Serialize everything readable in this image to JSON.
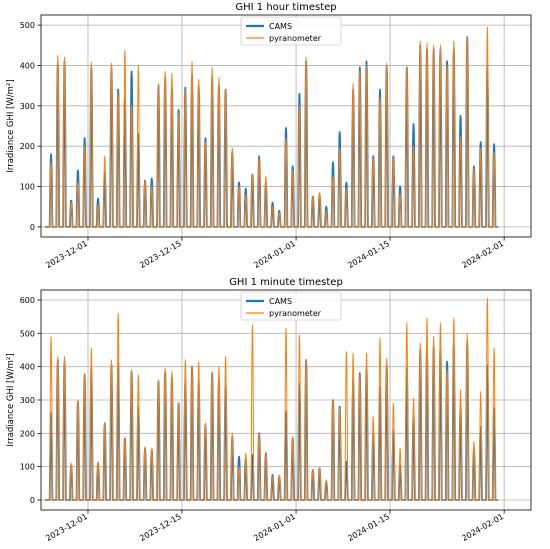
{
  "chart_data": [
    {
      "type": "line",
      "title": "GHI 1 hour timestep",
      "ylabel": "Irradiance GHI [W/m²]",
      "xlabel": "",
      "ylim": [
        -25,
        525
      ],
      "xlim": [
        "2023-11-24",
        "2024-02-05"
      ],
      "yticks": [
        0,
        100,
        200,
        300,
        400,
        500
      ],
      "xticks": [
        "2023-12-01",
        "2023-12-15",
        "2024-01-01",
        "2024-01-15",
        "2024-02-01"
      ],
      "grid": true,
      "legend_position": "top-center",
      "start_date": "2023-11-25",
      "series": [
        {
          "name": "CAMS",
          "color": "#1f77b4",
          "values": [
            180,
            405,
            410,
            65,
            140,
            220,
            395,
            70,
            135,
            395,
            340,
            320,
            385,
            230,
            115,
            120,
            350,
            370,
            345,
            290,
            345,
            375,
            350,
            220,
            370,
            350,
            340,
            185,
            110,
            95,
            130,
            175,
            110,
            60,
            40,
            245,
            150,
            330,
            410,
            75,
            80,
            50,
            160,
            235,
            110,
            340,
            395,
            410,
            175,
            340,
            400,
            175,
            100,
            395,
            255,
            450,
            440,
            440,
            440,
            410,
            440,
            275,
            470,
            150,
            210,
            400,
            205
          ]
        },
        {
          "name": "pyranometer",
          "color": "#ff7f0e",
          "values": [
            160,
            425,
            420,
            60,
            110,
            200,
            408,
            55,
            175,
            405,
            330,
            437,
            300,
            400,
            115,
            100,
            355,
            385,
            380,
            280,
            340,
            410,
            365,
            210,
            395,
            370,
            340,
            195,
            100,
            80,
            130,
            170,
            125,
            50,
            35,
            220,
            140,
            300,
            420,
            75,
            85,
            40,
            125,
            195,
            95,
            355,
            385,
            400,
            170,
            320,
            405,
            170,
            80,
            395,
            200,
            460,
            455,
            450,
            450,
            400,
            460,
            225,
            470,
            145,
            195,
            495,
            185
          ]
        }
      ]
    },
    {
      "type": "line",
      "title": "GHI 1 minute timestep",
      "ylabel": "Irradiance GHI [W/m²]",
      "xlabel": "",
      "ylim": [
        -30,
        630
      ],
      "xlim": [
        "2023-11-24",
        "2024-02-05"
      ],
      "yticks": [
        0,
        100,
        200,
        300,
        400,
        500,
        600
      ],
      "xticks": [
        "2023-12-01",
        "2023-12-15",
        "2024-01-01",
        "2024-01-15",
        "2024-02-01"
      ],
      "grid": true,
      "legend_position": "top-center",
      "start_date": "2023-11-25",
      "series": [
        {
          "name": "CAMS",
          "color": "#1f77b4",
          "values": [
            260,
            420,
            415,
            105,
            295,
            375,
            395,
            110,
            230,
            405,
            410,
            185,
            385,
            280,
            155,
            150,
            355,
            385,
            365,
            290,
            355,
            400,
            355,
            225,
            380,
            360,
            350,
            190,
            130,
            125,
            135,
            200,
            140,
            75,
            70,
            265,
            185,
            350,
            420,
            90,
            95,
            55,
            300,
            280,
            115,
            360,
            380,
            400,
            200,
            340,
            405,
            210,
            105,
            395,
            255,
            450,
            450,
            460,
            455,
            415,
            470,
            280,
            475,
            155,
            220,
            405,
            275
          ]
        },
        {
          "name": "pyranometer",
          "color": "#ff7f0e",
          "values": [
            490,
            430,
            430,
            110,
            300,
            380,
            455,
            115,
            230,
            420,
            560,
            185,
            390,
            375,
            160,
            155,
            360,
            395,
            385,
            290,
            420,
            400,
            415,
            230,
            385,
            400,
            430,
            200,
            100,
            140,
            525,
            200,
            140,
            70,
            75,
            515,
            190,
            495,
            420,
            90,
            95,
            60,
            300,
            275,
            445,
            440,
            375,
            440,
            250,
            485,
            425,
            290,
            155,
            530,
            305,
            470,
            545,
            490,
            530,
            390,
            545,
            330,
            500,
            175,
            325,
            605,
            455
          ]
        }
      ]
    }
  ]
}
